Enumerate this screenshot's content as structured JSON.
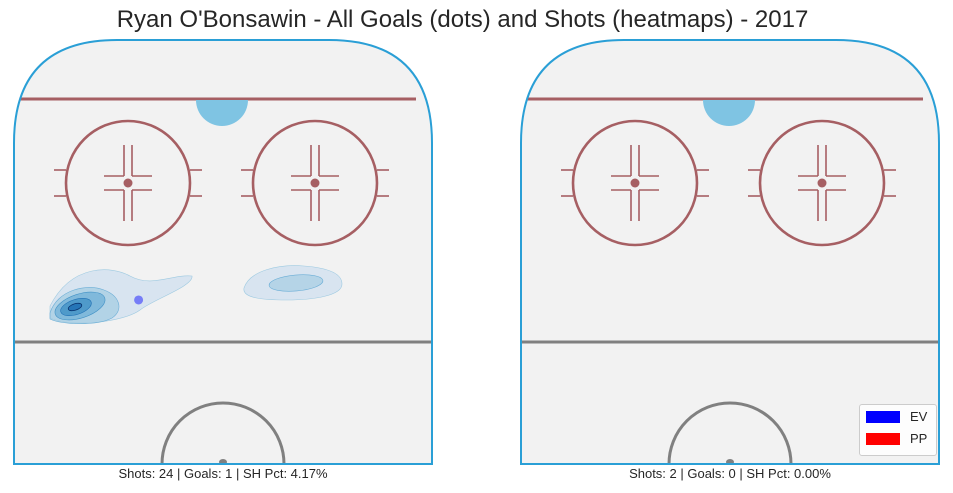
{
  "title": "Ryan O'Bonsawin - All Goals (dots) and Shots (heatmaps) - 2017",
  "colors": {
    "ice": "#f2f2f2",
    "boards": "#2a9fd6",
    "red_line": "#a65f63",
    "crease": "#7fc4e3",
    "center_line": "#808080",
    "ev": "#0000ff",
    "pp": "#ff0000"
  },
  "chart_data": [
    {
      "type": "heatmap",
      "panel": "left",
      "caption": "Shots: 24 | Goals: 1 | SH Pct: 4.17%",
      "shots": 24,
      "goals": 1,
      "sh_pct": "4.17%",
      "goal_dots": [
        {
          "x": 0.3,
          "y": 0.615,
          "strength": "EV"
        }
      ],
      "heat_regions": [
        {
          "zone": "left-slot",
          "density": "high"
        },
        {
          "zone": "right-slot",
          "density": "low"
        }
      ]
    },
    {
      "type": "heatmap",
      "panel": "right",
      "caption": "Shots: 2 | Goals: 0 | SH Pct: 0.00%",
      "shots": 2,
      "goals": 0,
      "sh_pct": "0.00%",
      "goal_dots": [],
      "heat_regions": []
    }
  ],
  "legend": {
    "items": [
      {
        "label": "EV",
        "color": "#0000ff"
      },
      {
        "label": "PP",
        "color": "#ff0000"
      }
    ]
  }
}
